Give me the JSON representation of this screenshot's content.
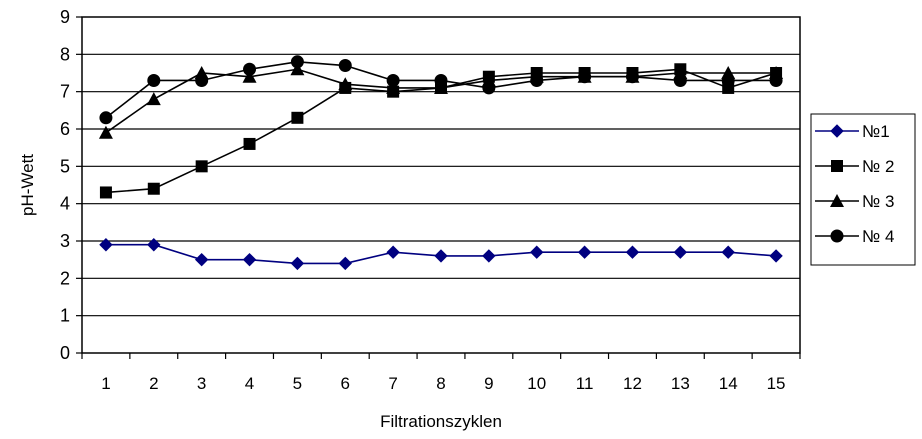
{
  "chart_data": {
    "type": "line",
    "xlabel": "Filtrationszyklen",
    "ylabel": "pH-Wett",
    "ylim": [
      0,
      9
    ],
    "yticks": [
      "0",
      "1",
      "2",
      "3",
      "4",
      "5",
      "6",
      "7",
      "8",
      "9"
    ],
    "categories": [
      "1",
      "2",
      "3",
      "4",
      "5",
      "6",
      "7",
      "8",
      "9",
      "10",
      "11",
      "12",
      "13",
      "14",
      "15"
    ],
    "grid": "horizontal",
    "legend_position": "right",
    "series": [
      {
        "name": "№1",
        "marker": "diamond",
        "color": "#000080",
        "values": [
          2.9,
          2.9,
          2.5,
          2.5,
          2.4,
          2.4,
          2.7,
          2.6,
          2.6,
          2.7,
          2.7,
          2.7,
          2.7,
          2.7,
          2.6
        ]
      },
      {
        "name": "№ 2",
        "marker": "square",
        "color": "#000000",
        "values": [
          4.3,
          4.4,
          5.0,
          5.6,
          6.3,
          7.1,
          7.0,
          7.1,
          7.4,
          7.5,
          7.5,
          7.5,
          7.6,
          7.1,
          7.5
        ]
      },
      {
        "name": "№ 3",
        "marker": "triangle",
        "color": "#000000",
        "values": [
          5.9,
          6.8,
          7.5,
          7.4,
          7.6,
          7.2,
          7.1,
          7.1,
          7.3,
          7.4,
          7.4,
          7.4,
          7.5,
          7.5,
          7.5
        ]
      },
      {
        "name": "№ 4",
        "marker": "circle",
        "color": "#000000",
        "values": [
          6.3,
          7.3,
          7.3,
          7.6,
          7.8,
          7.7,
          7.3,
          7.3,
          7.1,
          7.3,
          7.4,
          7.4,
          7.3,
          7.3,
          7.3
        ]
      }
    ]
  }
}
